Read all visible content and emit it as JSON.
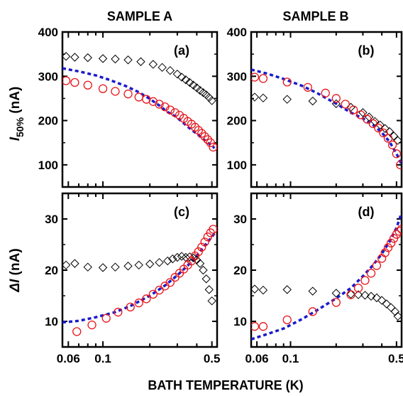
{
  "figure": {
    "column_titles": [
      "SAMPLE A",
      "SAMPLE B"
    ],
    "xlabel": "BATH TEMPERATURE (K)",
    "ylabel_top": {
      "symbol": "I",
      "sub": "50%",
      "unit": " (nA)"
    },
    "ylabel_bottom": {
      "symbol": "ΔI",
      "unit": " (nA)"
    }
  },
  "colors": {
    "circles": "#e8151b",
    "diamonds": "#000000",
    "fit": "#1a1acc",
    "axes": "#000000"
  },
  "chart_data": [
    {
      "type": "scatter",
      "panel": "(a)",
      "x_scale": "log",
      "xlim": [
        0.055,
        0.54
      ],
      "ylim": [
        50,
        400
      ],
      "x_ticks": [
        0.06,
        0.1,
        0.5
      ],
      "y_ticks": [
        100,
        200,
        300,
        400
      ],
      "series": [
        {
          "marker": "diamond",
          "x": [
            0.058,
            0.066,
            0.08,
            0.1,
            0.12,
            0.145,
            0.175,
            0.21,
            0.24,
            0.27,
            0.3,
            0.32,
            0.34,
            0.36,
            0.38,
            0.4,
            0.42,
            0.44,
            0.46,
            0.48,
            0.5
          ],
          "y": [
            345,
            343,
            342,
            340,
            339,
            337,
            333,
            327,
            320,
            313,
            305,
            298,
            292,
            286,
            280,
            274,
            268,
            263,
            258,
            252,
            245
          ]
        },
        {
          "marker": "circle",
          "x": [
            0.058,
            0.066,
            0.08,
            0.1,
            0.12,
            0.145,
            0.17,
            0.19,
            0.21,
            0.23,
            0.25,
            0.27,
            0.29,
            0.31,
            0.33,
            0.35,
            0.37,
            0.39,
            0.41,
            0.43,
            0.45,
            0.47,
            0.49,
            0.51
          ],
          "y": [
            290,
            286,
            280,
            272,
            266,
            260,
            253,
            248,
            243,
            237,
            231,
            224,
            218,
            212,
            205,
            198,
            192,
            185,
            178,
            171,
            164,
            157,
            150,
            140
          ]
        },
        {
          "marker": "dashed-line",
          "x": [
            0.055,
            0.07,
            0.09,
            0.11,
            0.14,
            0.17,
            0.2,
            0.23,
            0.26,
            0.29,
            0.32,
            0.35,
            0.38,
            0.41,
            0.44,
            0.47,
            0.5,
            0.52
          ],
          "y": [
            318,
            311,
            302,
            292,
            278,
            264,
            249,
            234,
            219,
            210,
            198,
            186,
            176,
            167,
            158,
            151,
            142,
            138
          ]
        }
      ]
    },
    {
      "type": "scatter",
      "panel": "(b)",
      "x_scale": "log",
      "xlim": [
        0.055,
        0.54
      ],
      "ylim": [
        50,
        400
      ],
      "x_ticks": [
        0.06,
        0.1,
        0.5
      ],
      "y_ticks": [
        100,
        200,
        300,
        400
      ],
      "series": [
        {
          "marker": "diamond",
          "x": [
            0.058,
            0.066,
            0.095,
            0.14,
            0.2,
            0.25,
            0.3,
            0.33,
            0.36,
            0.39,
            0.42,
            0.45,
            0.48,
            0.51
          ],
          "y": [
            253,
            251,
            248,
            244,
            238,
            230,
            218,
            208,
            198,
            190,
            182,
            175,
            165,
            155
          ]
        },
        {
          "marker": "circle",
          "x": [
            0.058,
            0.066,
            0.095,
            0.13,
            0.17,
            0.2,
            0.23,
            0.26,
            0.29,
            0.32,
            0.35,
            0.38,
            0.41,
            0.44,
            0.47,
            0.5,
            0.53
          ],
          "y": [
            298,
            295,
            287,
            275,
            262,
            250,
            237,
            224,
            213,
            203,
            193,
            183,
            172,
            160,
            145,
            125,
            100
          ]
        },
        {
          "marker": "dashed-line",
          "x": [
            0.055,
            0.07,
            0.09,
            0.12,
            0.15,
            0.2,
            0.25,
            0.3,
            0.35,
            0.4,
            0.45,
            0.5,
            0.54
          ],
          "y": [
            315,
            306,
            294,
            278,
            262,
            238,
            218,
            205,
            190,
            173,
            152,
            125,
            101
          ]
        }
      ]
    },
    {
      "type": "scatter",
      "panel": "(c)",
      "x_scale": "log",
      "xlim": [
        0.055,
        0.54
      ],
      "ylim": [
        5,
        35
      ],
      "x_ticks": [
        0.06,
        0.1,
        0.5
      ],
      "y_ticks": [
        10,
        20,
        30
      ],
      "series": [
        {
          "marker": "diamond",
          "x": [
            0.058,
            0.066,
            0.08,
            0.1,
            0.12,
            0.145,
            0.17,
            0.2,
            0.23,
            0.26,
            0.28,
            0.3,
            0.32,
            0.34,
            0.36,
            0.38,
            0.4,
            0.42,
            0.44,
            0.46,
            0.48,
            0.5
          ],
          "y": [
            21.0,
            21.3,
            20.6,
            20.5,
            20.6,
            20.8,
            21.0,
            21.2,
            21.5,
            21.8,
            22.2,
            22.5,
            22.7,
            22.5,
            22.6,
            22.4,
            22.0,
            21.3,
            20.0,
            18.3,
            16.2,
            14.0
          ]
        },
        {
          "marker": "circle",
          "x": [
            0.068,
            0.085,
            0.105,
            0.125,
            0.15,
            0.17,
            0.19,
            0.21,
            0.23,
            0.25,
            0.27,
            0.29,
            0.31,
            0.33,
            0.35,
            0.37,
            0.39,
            0.41,
            0.43,
            0.45,
            0.47,
            0.49,
            0.51
          ],
          "y": [
            8.0,
            9.3,
            10.6,
            11.8,
            12.8,
            13.6,
            14.4,
            15.3,
            16.1,
            16.9,
            17.6,
            18.6,
            19.4,
            20.2,
            21.0,
            21.8,
            22.8,
            23.6,
            24.5,
            25.5,
            26.5,
            27.3,
            28.0
          ]
        },
        {
          "marker": "dashed-line",
          "x": [
            0.055,
            0.07,
            0.09,
            0.12,
            0.15,
            0.2,
            0.25,
            0.3,
            0.35,
            0.4,
            0.45,
            0.5,
            0.53
          ],
          "y": [
            9.8,
            10.1,
            10.8,
            11.8,
            13.0,
            15.0,
            17.0,
            19.0,
            20.9,
            22.8,
            24.8,
            26.5,
            27.5
          ]
        }
      ]
    },
    {
      "type": "scatter",
      "panel": "(d)",
      "x_scale": "log",
      "xlim": [
        0.055,
        0.54
      ],
      "ylim": [
        5,
        35
      ],
      "x_ticks": [
        0.06,
        0.1,
        0.5
      ],
      "y_ticks": [
        10,
        20,
        30
      ],
      "series": [
        {
          "marker": "diamond",
          "x": [
            0.058,
            0.066,
            0.095,
            0.14,
            0.2,
            0.25,
            0.28,
            0.31,
            0.34,
            0.37,
            0.4,
            0.43,
            0.46,
            0.49,
            0.51
          ],
          "y": [
            16.3,
            16.1,
            16.2,
            15.9,
            15.5,
            15.3,
            15.2,
            15.1,
            14.9,
            14.6,
            14.1,
            13.4,
            12.7,
            11.9,
            11.0
          ]
        },
        {
          "marker": "circle",
          "x": [
            0.058,
            0.066,
            0.095,
            0.14,
            0.2,
            0.25,
            0.28,
            0.31,
            0.34,
            0.37,
            0.4,
            0.42,
            0.44,
            0.46,
            0.48,
            0.5,
            0.52,
            0.54
          ],
          "y": [
            9.0,
            9.0,
            10.3,
            11.9,
            13.7,
            15.2,
            16.5,
            18.0,
            19.4,
            20.9,
            22.3,
            23.4,
            24.4,
            25.3,
            26.2,
            27.0,
            27.6,
            28.0
          ]
        },
        {
          "marker": "dashed-line",
          "x": [
            0.055,
            0.07,
            0.09,
            0.12,
            0.15,
            0.2,
            0.25,
            0.3,
            0.35,
            0.4,
            0.45,
            0.5,
            0.54
          ],
          "y": [
            6.5,
            7.5,
            8.6,
            10.5,
            12.2,
            14.5,
            16.5,
            18.8,
            21.0,
            23.2,
            25.6,
            28.3,
            31.2
          ]
        }
      ]
    }
  ]
}
